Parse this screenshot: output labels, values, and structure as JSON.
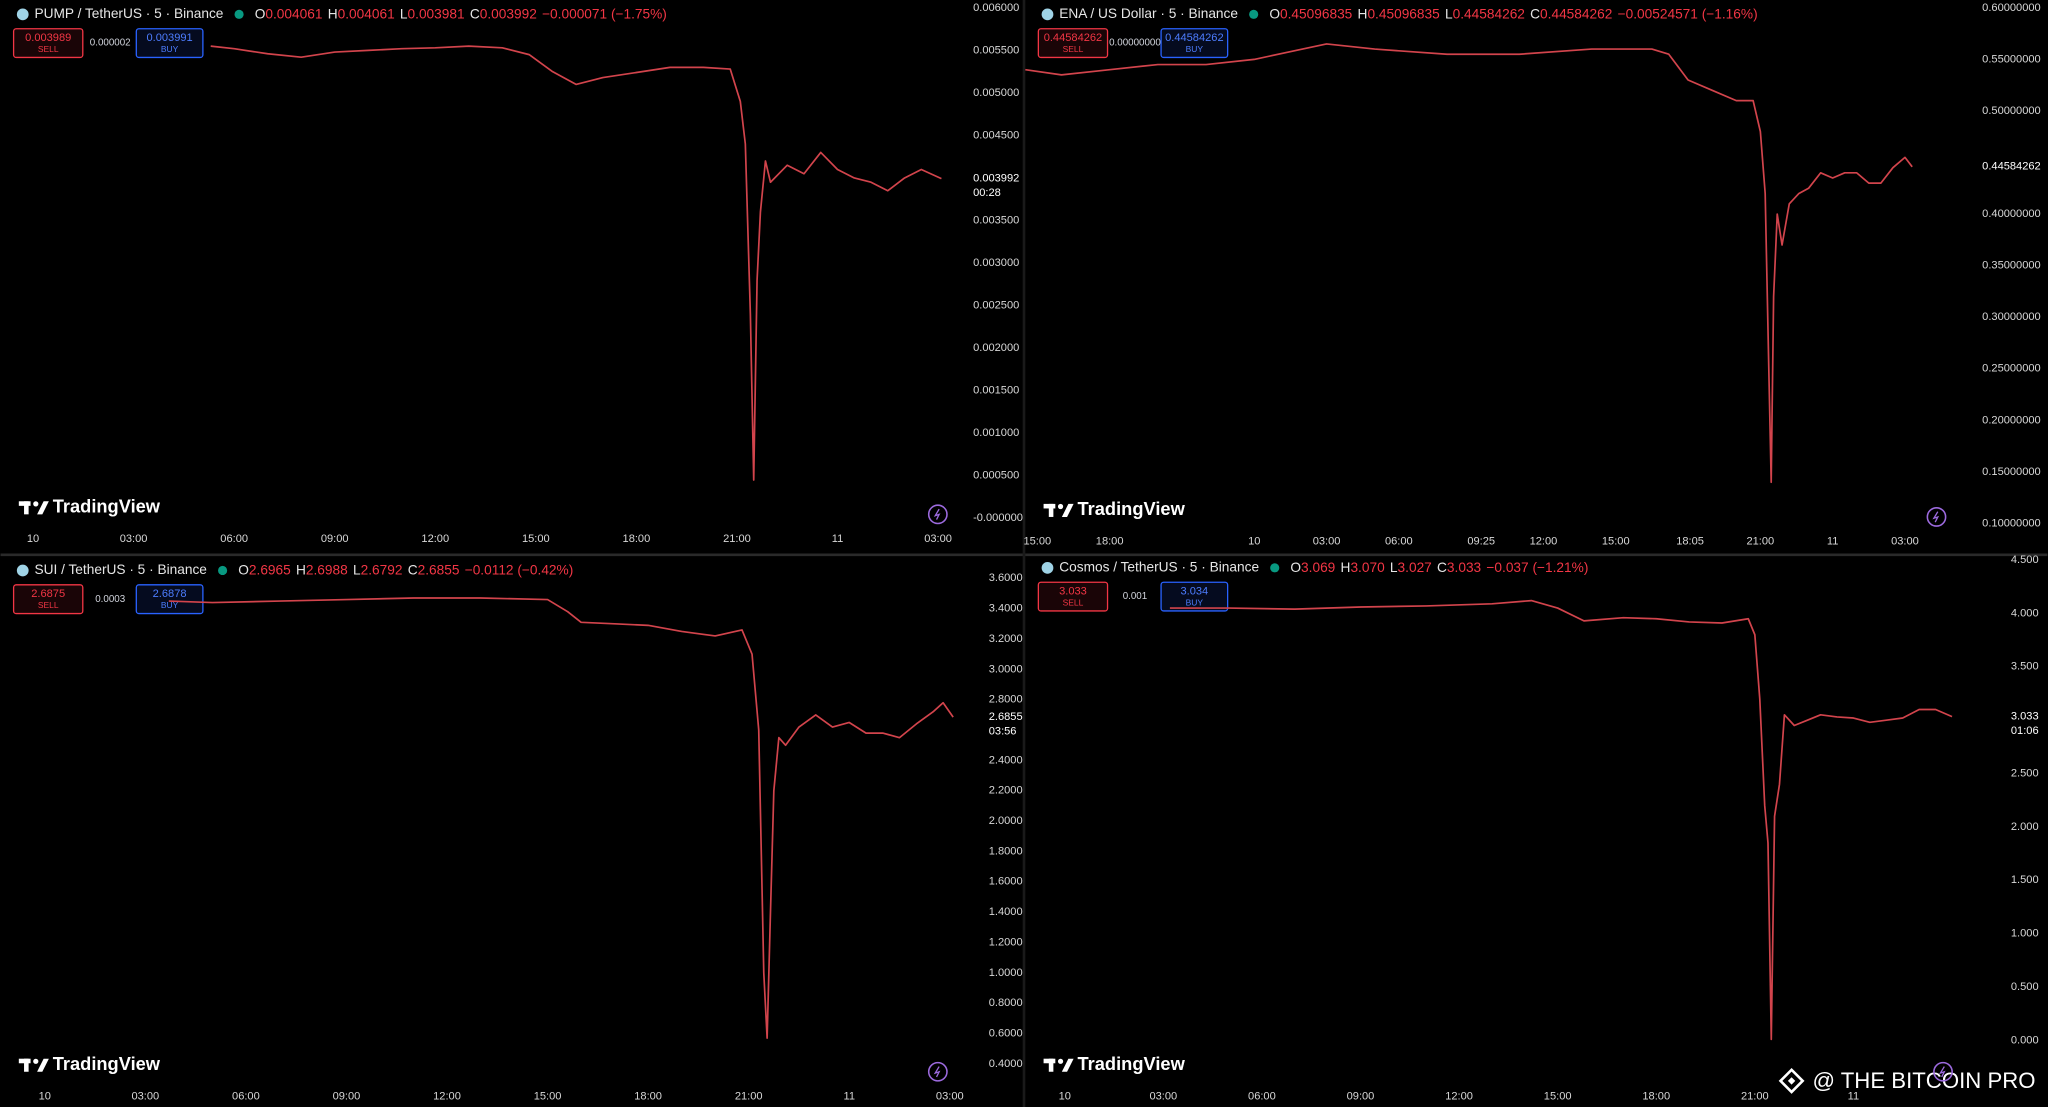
{
  "chart_data": [
    {
      "type": "line",
      "symbol": "PUMP / TetherUS · 5 · Binance",
      "ohlc": [
        {
          "key": "O",
          "value": "0.004061"
        },
        {
          "key": "H",
          "value": "0.004061"
        },
        {
          "key": "L",
          "value": "0.003981"
        },
        {
          "key": "C",
          "value": "0.003992"
        }
      ],
      "change": "−0.000071 (−1.75%)",
      "sell": "0.003989",
      "sell_label": "SELL",
      "spread": "0.000002",
      "buy": "0.003991",
      "buy_label": "BUY",
      "logo": "TradingView",
      "color": "#d2444c",
      "x": [
        5.3,
        6,
        7,
        8,
        9,
        10,
        11,
        12,
        13,
        14,
        14.8,
        15.5,
        16.2,
        17,
        18,
        19,
        20,
        20.8,
        21.1,
        21.25,
        21.4,
        21.5,
        21.6,
        21.7,
        21.85,
        22,
        22.5,
        23,
        23.5,
        24,
        24.5,
        25,
        25.5,
        26,
        26.5,
        27.1
      ],
      "values": [
        0.00555,
        0.00552,
        0.00546,
        0.00542,
        0.00548,
        0.0055,
        0.00552,
        0.00553,
        0.00555,
        0.00553,
        0.00545,
        0.00525,
        0.0051,
        0.00518,
        0.00524,
        0.0053,
        0.0053,
        0.00528,
        0.0049,
        0.0044,
        0.0024,
        0.00045,
        0.0028,
        0.0036,
        0.0042,
        0.00395,
        0.00415,
        0.00405,
        0.0043,
        0.0041,
        0.004,
        0.00395,
        0.00385,
        0.004,
        0.0041,
        0.003992
      ],
      "last_price": {
        "value": 0.003992,
        "label": "0.003992"
      },
      "countdown": "00:28",
      "xlim": [
        -0.97,
        27.85
      ],
      "ylim": [
        0,
        0.006
      ],
      "xticks": [
        {
          "value": 0,
          "label": "10"
        },
        {
          "value": 3,
          "label": "03:00"
        },
        {
          "value": 6,
          "label": "06:00"
        },
        {
          "value": 9,
          "label": "09:00"
        },
        {
          "value": 12,
          "label": "12:00"
        },
        {
          "value": 15,
          "label": "15:00"
        },
        {
          "value": 18,
          "label": "18:00"
        },
        {
          "value": 21,
          "label": "21:00"
        },
        {
          "value": 24,
          "label": "11"
        },
        {
          "value": 27,
          "label": "03:00"
        }
      ],
      "yticks": [
        {
          "value": 0.006,
          "label": "0.006000"
        },
        {
          "value": 0.0055,
          "label": "0.005500"
        },
        {
          "value": 0.005,
          "label": "0.005000"
        },
        {
          "value": 0.0045,
          "label": "0.004500"
        },
        {
          "value": 0.0035,
          "label": "0.003500"
        },
        {
          "value": 0.003,
          "label": "0.003000"
        },
        {
          "value": 0.0025,
          "label": "0.002500"
        },
        {
          "value": 0.002,
          "label": "0.002000"
        },
        {
          "value": 0.0015,
          "label": "0.001500"
        },
        {
          "value": 0.001,
          "label": "0.001000"
        },
        {
          "value": 0.0005,
          "label": "0.000500"
        },
        {
          "value": 0,
          "label": "-0.000000"
        }
      ]
    },
    {
      "type": "line",
      "symbol": "ENA / US Dollar · 5 · Binance",
      "ohlc": [
        {
          "key": "O",
          "value": "0.45096835"
        },
        {
          "key": "H",
          "value": "0.45096835"
        },
        {
          "key": "L",
          "value": "0.44584262"
        },
        {
          "key": "C",
          "value": "0.44584262"
        }
      ],
      "change": "−0.00524571 (−1.16%)",
      "sell": "0.44584262",
      "sell_label": "SELL",
      "spread": "0.00000000",
      "buy": "0.44584262",
      "buy_label": "BUY",
      "logo": "TradingView",
      "color": "#d2444c",
      "x": [
        -9.5,
        -8,
        -6,
        -4,
        -2,
        0,
        2,
        3,
        5,
        8,
        11,
        14,
        16.5,
        17.2,
        18,
        19,
        20,
        20.7,
        21,
        21.2,
        21.35,
        21.45,
        21.55,
        21.7,
        21.9,
        22.2,
        22.6,
        23,
        23.5,
        24,
        24.5,
        25,
        25.5,
        26,
        26.5,
        27,
        27.3
      ],
      "values": [
        0.54,
        0.535,
        0.54,
        0.545,
        0.545,
        0.55,
        0.56,
        0.565,
        0.56,
        0.555,
        0.555,
        0.56,
        0.56,
        0.555,
        0.53,
        0.52,
        0.51,
        0.51,
        0.48,
        0.42,
        0.25,
        0.14,
        0.32,
        0.4,
        0.37,
        0.41,
        0.42,
        0.425,
        0.44,
        0.435,
        0.44,
        0.44,
        0.43,
        0.43,
        0.445,
        0.455,
        0.44584262
      ],
      "last_price": {
        "value": 0.44584262,
        "label": "0.44584262"
      },
      "xlim": [
        -9.5,
        29.5
      ],
      "ylim": [
        0.1,
        0.6
      ],
      "xticks": [
        {
          "value": -9,
          "label": "15:00"
        },
        {
          "value": -6,
          "label": "18:00"
        },
        {
          "value": 0,
          "label": "10"
        },
        {
          "value": 3,
          "label": "03:00"
        },
        {
          "value": 6,
          "label": "06:00"
        },
        {
          "value": 9.417,
          "label": "09:25"
        },
        {
          "value": 12,
          "label": "12:00"
        },
        {
          "value": 15,
          "label": "15:00"
        },
        {
          "value": 18.083,
          "label": "18:05"
        },
        {
          "value": 21,
          "label": "21:00"
        },
        {
          "value": 24,
          "label": "11"
        },
        {
          "value": 27,
          "label": "03:00"
        }
      ],
      "yticks": [
        {
          "value": 0.6,
          "label": "0.60000000"
        },
        {
          "value": 0.55,
          "label": "0.55000000"
        },
        {
          "value": 0.5,
          "label": "0.50000000"
        },
        {
          "value": 0.4,
          "label": "0.40000000"
        },
        {
          "value": 0.35,
          "label": "0.35000000"
        },
        {
          "value": 0.3,
          "label": "0.30000000"
        },
        {
          "value": 0.25,
          "label": "0.25000000"
        },
        {
          "value": 0.2,
          "label": "0.20000000"
        },
        {
          "value": 0.15,
          "label": "0.15000000"
        },
        {
          "value": 0.1,
          "label": "0.10000000"
        }
      ]
    },
    {
      "type": "line",
      "symbol": "SUI / TetherUS · 5 · Binance",
      "ohlc": [
        {
          "key": "O",
          "value": "2.6965"
        },
        {
          "key": "H",
          "value": "2.6988"
        },
        {
          "key": "L",
          "value": "2.6792"
        },
        {
          "key": "C",
          "value": "2.6855"
        }
      ],
      "change": "−0.0112 (−0.42%)",
      "sell": "2.6875",
      "sell_label": "SELL",
      "spread": "0.0003",
      "buy": "2.6878",
      "buy_label": "BUY",
      "logo": "TradingView",
      "color": "#d2444c",
      "x": [
        3.7,
        5,
        7,
        9,
        11,
        13,
        15,
        15.6,
        16,
        17,
        18,
        19,
        20,
        20.8,
        21.1,
        21.3,
        21.45,
        21.55,
        21.65,
        21.75,
        21.9,
        22.1,
        22.5,
        23,
        23.5,
        24,
        24.5,
        25,
        25.5,
        26,
        26.5,
        26.8,
        27.1
      ],
      "values": [
        3.45,
        3.44,
        3.45,
        3.46,
        3.47,
        3.47,
        3.46,
        3.38,
        3.31,
        3.3,
        3.29,
        3.25,
        3.22,
        3.26,
        3.1,
        2.6,
        1.0,
        0.57,
        1.4,
        2.2,
        2.55,
        2.5,
        2.62,
        2.7,
        2.62,
        2.65,
        2.58,
        2.58,
        2.55,
        2.64,
        2.72,
        2.78,
        2.6855
      ],
      "last_price": {
        "value": 2.6855,
        "label": "2.6855"
      },
      "countdown": "03:56",
      "xlim": [
        -1.32,
        27.5
      ],
      "ylim": [
        0.4,
        3.6
      ],
      "xticks": [
        {
          "value": 0,
          "label": "10"
        },
        {
          "value": 3,
          "label": "03:00"
        },
        {
          "value": 6,
          "label": "06:00"
        },
        {
          "value": 9,
          "label": "09:00"
        },
        {
          "value": 12,
          "label": "12:00"
        },
        {
          "value": 15,
          "label": "15:00"
        },
        {
          "value": 18,
          "label": "18:00"
        },
        {
          "value": 21,
          "label": "21:00"
        },
        {
          "value": 24,
          "label": "11"
        },
        {
          "value": 27,
          "label": "03:00"
        }
      ],
      "yticks": [
        {
          "value": 3.6,
          "label": "3.6000"
        },
        {
          "value": 3.4,
          "label": "3.4000"
        },
        {
          "value": 3.2,
          "label": "3.2000"
        },
        {
          "value": 3,
          "label": "3.0000"
        },
        {
          "value": 2.8,
          "label": "2.8000"
        },
        {
          "value": 2.4,
          "label": "2.4000"
        },
        {
          "value": 2.2,
          "label": "2.2000"
        },
        {
          "value": 2,
          "label": "2.0000"
        },
        {
          "value": 1.8,
          "label": "1.8000"
        },
        {
          "value": 1.6,
          "label": "1.6000"
        },
        {
          "value": 1.4,
          "label": "1.4000"
        },
        {
          "value": 1.2,
          "label": "1.2000"
        },
        {
          "value": 1,
          "label": "1.0000"
        },
        {
          "value": 0.8,
          "label": "0.8000"
        },
        {
          "value": 0.6,
          "label": "0.6000"
        },
        {
          "value": 0.4,
          "label": "0.4000"
        }
      ]
    },
    {
      "type": "line",
      "symbol": "Cosmos / TetherUS · 5 · Binance",
      "ohlc": [
        {
          "key": "O",
          "value": "3.069"
        },
        {
          "key": "H",
          "value": "3.070"
        },
        {
          "key": "L",
          "value": "3.027"
        },
        {
          "key": "C",
          "value": "3.033"
        }
      ],
      "change": "−0.037 (−1.21%)",
      "sell": "3.033",
      "sell_label": "SELL",
      "spread": "0.001",
      "buy": "3.034",
      "buy_label": "BUY",
      "logo": "TradingView",
      "color": "#d2444c",
      "x": [
        3.2,
        5,
        7,
        9,
        11,
        13,
        14.2,
        15,
        15.8,
        17,
        18,
        19,
        20,
        20.8,
        21,
        21.15,
        21.3,
        21.4,
        21.5,
        21.6,
        21.75,
        21.9,
        22.2,
        22.6,
        23,
        23.5,
        24,
        24.5,
        25,
        25.5,
        26,
        26.5,
        27
      ],
      "values": [
        4.05,
        4.05,
        4.04,
        4.06,
        4.07,
        4.09,
        4.12,
        4.05,
        3.93,
        3.96,
        3.95,
        3.92,
        3.91,
        3.95,
        3.8,
        3.2,
        2.2,
        1.85,
        0.01,
        2.1,
        2.4,
        3.05,
        2.95,
        3.0,
        3.05,
        3.03,
        3.02,
        2.98,
        3.0,
        3.02,
        3.1,
        3.1,
        3.033
      ],
      "last_price": {
        "value": 3.033,
        "label": "3.033"
      },
      "countdown": "01:06",
      "xlim": [
        -1.2,
        27.6
      ],
      "ylim": [
        0,
        4.5
      ],
      "xticks": [
        {
          "value": 0,
          "label": "10"
        },
        {
          "value": 3,
          "label": "03:00"
        },
        {
          "value": 6,
          "label": "06:00"
        },
        {
          "value": 9,
          "label": "09:00"
        },
        {
          "value": 12,
          "label": "12:00"
        },
        {
          "value": 15,
          "label": "15:00"
        },
        {
          "value": 18,
          "label": "18:00"
        },
        {
          "value": 21,
          "label": "21:00"
        },
        {
          "value": 24,
          "label": "11"
        }
      ],
      "yticks": [
        {
          "value": 4.5,
          "label": "4.500"
        },
        {
          "value": 4,
          "label": "4.000"
        },
        {
          "value": 3.5,
          "label": "3.500"
        },
        {
          "value": 2.5,
          "label": "2.500"
        },
        {
          "value": 2,
          "label": "2.000"
        },
        {
          "value": 1.5,
          "label": "1.500"
        },
        {
          "value": 1,
          "label": "1.000"
        },
        {
          "value": 0.5,
          "label": "0.500"
        },
        {
          "value": 0,
          "label": "0.000"
        }
      ]
    }
  ],
  "watermark": "@ THE BITCOIN PRO"
}
